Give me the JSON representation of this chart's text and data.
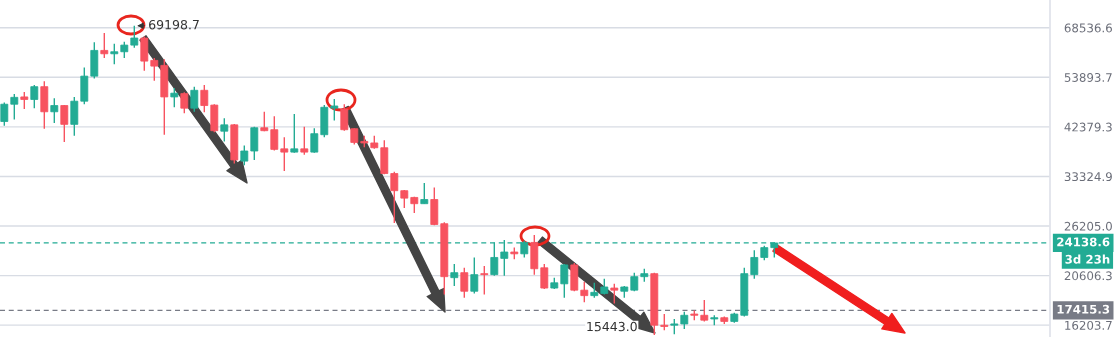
{
  "chart_data": {
    "type": "candlestick",
    "categories": [
      null,
      null,
      null,
      null,
      null,
      null,
      null,
      null,
      null,
      null,
      null,
      null,
      null,
      null,
      null,
      null,
      null,
      null,
      null,
      null,
      null,
      null,
      null,
      null,
      null,
      null,
      null,
      null,
      null,
      null,
      null,
      null,
      null,
      null,
      null,
      null,
      null,
      null,
      null,
      null,
      null,
      null,
      null,
      null,
      null,
      null,
      null,
      null,
      null,
      null,
      null,
      null,
      null,
      null,
      null,
      null,
      null,
      null,
      null,
      null,
      null,
      null,
      null,
      null,
      null,
      null,
      null,
      null,
      null,
      null,
      null,
      null,
      null,
      null,
      null,
      null,
      null,
      null,
      null,
      null,
      null,
      null,
      null,
      null,
      null,
      null,
      null,
      null,
      null,
      null,
      null,
      null,
      null,
      null,
      null,
      null,
      null,
      null,
      null,
      null,
      null,
      null,
      null,
      null,
      null
    ],
    "ohlc": [
      [
        43500,
        47700,
        42600,
        47300
      ],
      [
        47300,
        49700,
        43900,
        48900
      ],
      [
        49000,
        50200,
        46200,
        48400
      ],
      [
        48400,
        51900,
        46400,
        51500
      ],
      [
        51500,
        52900,
        42000,
        45600
      ],
      [
        45600,
        48700,
        43200,
        47000
      ],
      [
        47000,
        47100,
        39400,
        42900
      ],
      [
        42900,
        49000,
        40600,
        48000
      ],
      [
        48000,
        56500,
        47300,
        54200
      ],
      [
        54200,
        63900,
        53600,
        61400
      ],
      [
        61400,
        66800,
        59200,
        60400
      ],
      [
        60400,
        63400,
        57400,
        61000
      ],
      [
        61000,
        64000,
        59200,
        63000
      ],
      [
        63000,
        69198.7,
        62200,
        65200
      ],
      [
        65200,
        65700,
        55600,
        58300
      ],
      [
        58500,
        59200,
        53000,
        56900
      ],
      [
        57100,
        58800,
        40800,
        49000
      ],
      [
        49000,
        51200,
        46600,
        49900
      ],
      [
        49800,
        50100,
        45300,
        46400
      ],
      [
        46400,
        51500,
        45600,
        50600
      ],
      [
        50600,
        51900,
        45500,
        47000
      ],
      [
        47100,
        47300,
        41300,
        41600
      ],
      [
        41500,
        44200,
        39500,
        42800
      ],
      [
        42800,
        43000,
        35500,
        36100
      ],
      [
        35900,
        38700,
        35200,
        37700
      ],
      [
        37700,
        42400,
        36100,
        42200
      ],
      [
        42200,
        45600,
        41500,
        41600
      ],
      [
        41800,
        44600,
        37800,
        38000
      ],
      [
        38100,
        40300,
        34200,
        37500
      ],
      [
        37500,
        45100,
        37400,
        38100
      ],
      [
        38100,
        42400,
        37000,
        37500
      ],
      [
        37500,
        42100,
        37400,
        41000
      ],
      [
        40800,
        47100,
        40300,
        46600
      ],
      [
        46400,
        48500,
        43700,
        46900
      ],
      [
        46200,
        47300,
        41600,
        41800
      ],
      [
        42000,
        42100,
        38900,
        39300
      ],
      [
        39500,
        40600,
        38400,
        39200
      ],
      [
        39200,
        40600,
        38100,
        38300
      ],
      [
        38300,
        39700,
        33700,
        33800
      ],
      [
        33800,
        34100,
        26600,
        31100
      ],
      [
        31100,
        31200,
        28600,
        30000
      ],
      [
        30100,
        30200,
        27900,
        29200
      ],
      [
        29200,
        32300,
        29200,
        29800
      ],
      [
        29800,
        31600,
        26300,
        26400
      ],
      [
        26500,
        26700,
        18800,
        20500
      ],
      [
        20400,
        21800,
        19600,
        20900
      ],
      [
        20900,
        21400,
        18500,
        19100
      ],
      [
        19100,
        22500,
        18900,
        20700
      ],
      [
        20800,
        21600,
        18800,
        20700
      ],
      [
        20700,
        24200,
        20600,
        22500
      ],
      [
        22400,
        24500,
        20600,
        23100
      ],
      [
        23100,
        23600,
        22300,
        22900
      ],
      [
        22900,
        24400,
        22500,
        24200
      ],
      [
        24200,
        25100,
        20700,
        21300
      ],
      [
        21400,
        21800,
        19300,
        19400
      ],
      [
        19400,
        20400,
        19300,
        19900
      ],
      [
        19800,
        21800,
        18500,
        21700
      ],
      [
        21700,
        21900,
        19100,
        19200
      ],
      [
        19200,
        20000,
        18100,
        18700
      ],
      [
        18700,
        19900,
        18500,
        19000
      ],
      [
        18900,
        20300,
        18800,
        19500
      ],
      [
        19400,
        19800,
        18000,
        19200
      ],
      [
        19100,
        19600,
        18500,
        19500
      ],
      [
        19200,
        20900,
        19100,
        20500
      ],
      [
        20500,
        21300,
        20000,
        20800
      ],
      [
        20800,
        20900,
        15443.0,
        16200
      ],
      [
        16200,
        17100,
        15800,
        16100
      ],
      [
        16200,
        16700,
        15500,
        16300
      ],
      [
        16300,
        17300,
        15900,
        17000
      ],
      [
        17100,
        17400,
        16600,
        17000
      ],
      [
        17000,
        18300,
        16500,
        16600
      ],
      [
        16700,
        17000,
        16200,
        16800
      ],
      [
        16800,
        16900,
        16300,
        16500
      ],
      [
        16500,
        17200,
        16400,
        17100
      ],
      [
        17000,
        21400,
        16900,
        20800
      ],
      [
        20700,
        23300,
        20300,
        22500
      ],
      [
        22500,
        23800,
        22200,
        23600
      ],
      [
        23600,
        24200,
        22500,
        24138.6
      ],
      null,
      null,
      null,
      null,
      null,
      null,
      null,
      null,
      null,
      null,
      null,
      null,
      null,
      null,
      null,
      null,
      null,
      null,
      null,
      null,
      null,
      null,
      null,
      null,
      null,
      null,
      null
    ],
    "colors": [
      "#22ab94",
      "#22ab94",
      "#f7525f",
      "#22ab94",
      "#f7525f",
      "#22ab94",
      "#f7525f",
      "#22ab94",
      "#22ab94",
      "#22ab94",
      "#f7525f",
      "#22ab94",
      "#22ab94",
      "#22ab94",
      "#f7525f",
      "#f7525f",
      "#f7525f",
      "#22ab94",
      "#f7525f",
      "#22ab94",
      "#f7525f",
      "#f7525f",
      "#22ab94",
      "#f7525f",
      "#22ab94",
      "#22ab94",
      "#f7525f",
      "#f7525f",
      "#f7525f",
      "#22ab94",
      "#f7525f",
      "#22ab94",
      "#22ab94",
      "#22ab94",
      "#f7525f",
      "#f7525f",
      "#f7525f",
      "#f7525f",
      "#f7525f",
      "#f7525f",
      "#f7525f",
      "#f7525f",
      "#22ab94",
      "#f7525f",
      "#f7525f",
      "#22ab94",
      "#f7525f",
      "#22ab94",
      "#f7525f",
      "#22ab94",
      "#22ab94",
      "#f7525f",
      "#22ab94",
      "#f7525f",
      "#f7525f",
      "#22ab94",
      "#22ab94",
      "#f7525f",
      "#f7525f",
      "#22ab94",
      "#22ab94",
      "#f7525f",
      "#22ab94",
      "#22ab94",
      "#22ab94",
      "#f7525f",
      "#f7525f",
      "#22ab94",
      "#22ab94",
      "#f7525f",
      "#f7525f",
      "#22ab94",
      "#f7525f",
      "#22ab94",
      "#22ab94",
      "#22ab94",
      "#22ab94",
      "#22ab94",
      null,
      null,
      null,
      null,
      null,
      null,
      null,
      null,
      null,
      null,
      null,
      null,
      null,
      null,
      null,
      null,
      null,
      null,
      null,
      null,
      null,
      null,
      null,
      null,
      null,
      null,
      null
    ],
    "log": "y",
    "ylim": [
      15300,
      78400
    ],
    "yticks": [
      16203.7,
      20606.3,
      {
        "value": 26205.0,
        "label": "26205.0"
      },
      33324.9,
      42379.3,
      53893.7,
      68536.6
    ],
    "grid": "y",
    "tick_labels": "y",
    "ref_lines": [
      {
        "axis": "y",
        "value": 24138.6,
        "label": "24138.6",
        "color": "#22ab94",
        "line_style": "dashed"
      },
      {
        "axis": "y",
        "value": 17415.3,
        "label": "17415.3",
        "color": "#787b86",
        "line_style": "dashed"
      }
    ],
    "annotations": [
      "69198.7",
      "15443.0",
      "3d 23h"
    ]
  }
}
